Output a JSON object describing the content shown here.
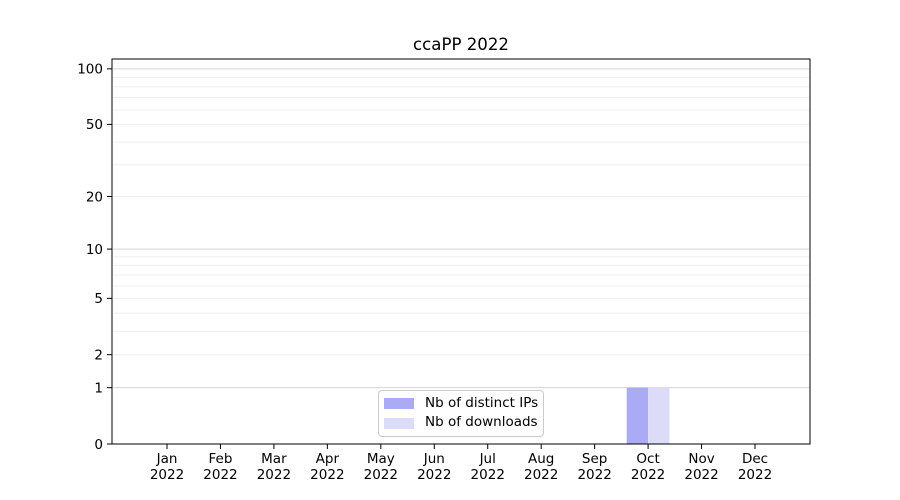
{
  "figure": {
    "title": "ccaPP 2022",
    "background_color": "#ffffff"
  },
  "chart_data": {
    "type": "bar",
    "title": "ccaPP 2022",
    "xlabel": "",
    "ylabel": "",
    "categories": [
      "Jan 2022",
      "Feb 2022",
      "Mar 2022",
      "Apr 2022",
      "May 2022",
      "Jun 2022",
      "Jul 2022",
      "Aug 2022",
      "Sep 2022",
      "Oct 2022",
      "Nov 2022",
      "Dec 2022"
    ],
    "month_labels": [
      "Jan",
      "Feb",
      "Mar",
      "Apr",
      "May",
      "Jun",
      "Jul",
      "Aug",
      "Sep",
      "Oct",
      "Nov",
      "Dec"
    ],
    "year_label": "2022",
    "series": [
      {
        "name": "Nb of distinct IPs",
        "color": "#aaaaf5",
        "values": [
          0,
          0,
          0,
          0,
          0,
          0,
          0,
          0,
          0,
          1,
          0,
          0
        ]
      },
      {
        "name": "Nb of downloads",
        "color": "#dcdcf8",
        "values": [
          0,
          0,
          0,
          0,
          0,
          0,
          0,
          0,
          0,
          1,
          0,
          0
        ]
      }
    ],
    "yscale": "log1p",
    "ylim": [
      0,
      113
    ],
    "ytick_values": [
      0,
      1,
      2,
      5,
      10,
      20,
      50,
      100
    ],
    "ytick_labels": [
      "0",
      "1",
      "2",
      "5",
      "10",
      "20",
      "50",
      "100"
    ],
    "major_gridline_values": [
      1,
      10,
      100
    ],
    "minor_gridline_values": [
      2,
      3,
      4,
      5,
      6,
      7,
      8,
      9,
      20,
      30,
      40,
      50,
      60,
      70,
      80,
      90
    ],
    "grid": "horizontal",
    "legend_position": "bottom-center",
    "colors": {
      "major_grid": "#d5d5d5",
      "minor_grid": "#efefef",
      "spine": "#000000",
      "tick": "#000000",
      "text": "#000000",
      "legend_border": "#cbcbcb",
      "background": "#ffffff"
    }
  }
}
